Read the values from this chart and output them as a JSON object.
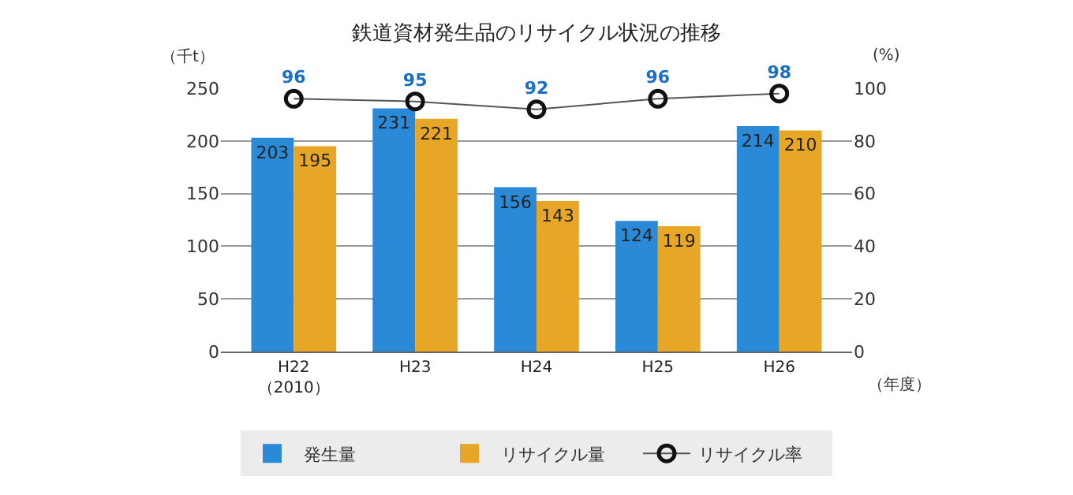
{
  "chart_data": {
    "type": "bar",
    "title": "鉄道資材発生品のリサイクル状況の推移",
    "categories": [
      "H22\n（2010）",
      "H23",
      "H24",
      "H25",
      "H26"
    ],
    "xlabel": "（年度）",
    "ylabel": "（千t）",
    "y2label": "(%)",
    "series": [
      {
        "name": "発生量",
        "color": "#2b8ad8",
        "values": [
          203,
          231,
          156,
          124,
          214
        ]
      },
      {
        "name": "リサイクル量",
        "color": "#e8a627",
        "values": [
          195,
          221,
          143,
          119,
          210
        ]
      },
      {
        "name": "リサイクル率",
        "type": "line",
        "axis": "y2",
        "color": "#555555",
        "values": [
          96,
          95,
          92,
          96,
          98
        ]
      }
    ],
    "ylim": [
      0,
      250
    ],
    "yticks": [
      0,
      50,
      100,
      150,
      200,
      250
    ],
    "y2lim": [
      0,
      100
    ],
    "y2ticks": [
      0,
      20,
      40,
      60,
      80,
      100
    ],
    "grid": "y",
    "legend": "bottom",
    "marker": "circle",
    "data_labels": true
  }
}
